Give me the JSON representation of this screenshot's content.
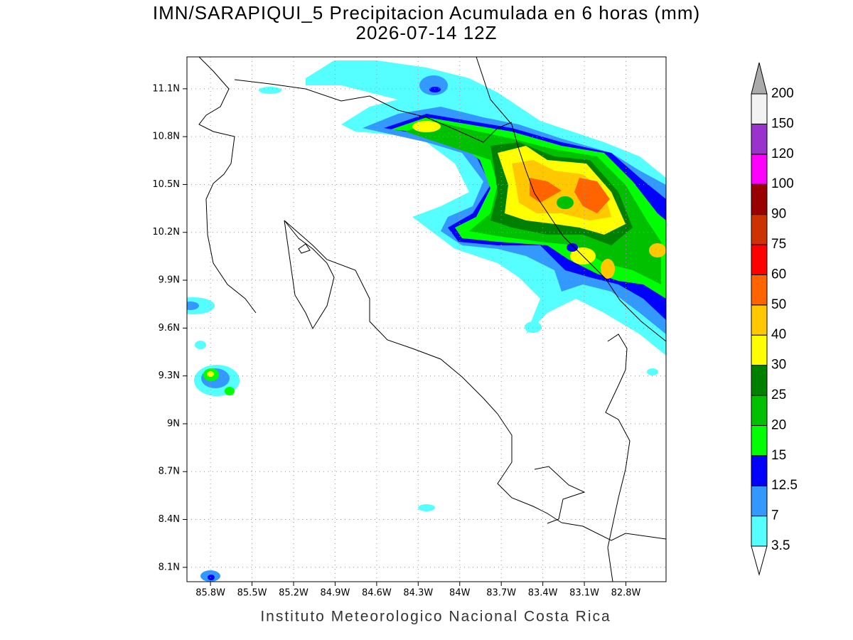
{
  "map": {
    "title": "IMN/SARAPIQUI_5 Precipitacion Acumulada en 6 horas (mm)",
    "subtitle": "2026-07-14 12Z",
    "footer": "Instituto Meteorologico Nacional Costa Rica",
    "xlim": [
      -85.97,
      -82.51
    ],
    "ylim": [
      8.01,
      11.3
    ],
    "grid": true,
    "xticks": [
      {
        "value": -85.8,
        "label": "85.8W"
      },
      {
        "value": -85.5,
        "label": "85.5W"
      },
      {
        "value": -85.2,
        "label": "85.2W"
      },
      {
        "value": -84.9,
        "label": "84.9W"
      },
      {
        "value": -84.6,
        "label": "84.6W"
      },
      {
        "value": -84.3,
        "label": "84.3W"
      },
      {
        "value": -84,
        "label": "84W"
      },
      {
        "value": -83.7,
        "label": "83.7W"
      },
      {
        "value": -83.4,
        "label": "83.4W"
      },
      {
        "value": -83.1,
        "label": "83.1W"
      },
      {
        "value": -82.8,
        "label": "82.8W"
      }
    ],
    "yticks": [
      {
        "value": 8.1,
        "label": "8.1N"
      },
      {
        "value": 8.4,
        "label": "8.4N"
      },
      {
        "value": 8.7,
        "label": "8.7N"
      },
      {
        "value": 9,
        "label": "9N"
      },
      {
        "value": 9.3,
        "label": "9.3N"
      },
      {
        "value": 9.6,
        "label": "9.6N"
      },
      {
        "value": 9.9,
        "label": "9.9N"
      },
      {
        "value": 10.2,
        "label": "10.2N"
      },
      {
        "value": 10.5,
        "label": "10.5N"
      },
      {
        "value": 10.8,
        "label": "10.8N"
      },
      {
        "value": 11.1,
        "label": "11.1N"
      }
    ],
    "colorbar": {
      "levels": [
        3.5,
        7,
        12.5,
        15,
        20,
        25,
        30,
        40,
        50,
        60,
        75,
        90,
        100,
        120,
        150,
        200
      ],
      "colors": [
        "#55ffff",
        "#3399ff",
        "#0000ff",
        "#00ff00",
        "#00c000",
        "#008000",
        "#ffff00",
        "#ffc800",
        "#ff6400",
        "#ff0000",
        "#cc3300",
        "#990000",
        "#ff00ff",
        "#9933cc",
        "#f2f2f2"
      ],
      "under_color": "#ffffff",
      "over_color": "#aaaaaa"
    }
  }
}
